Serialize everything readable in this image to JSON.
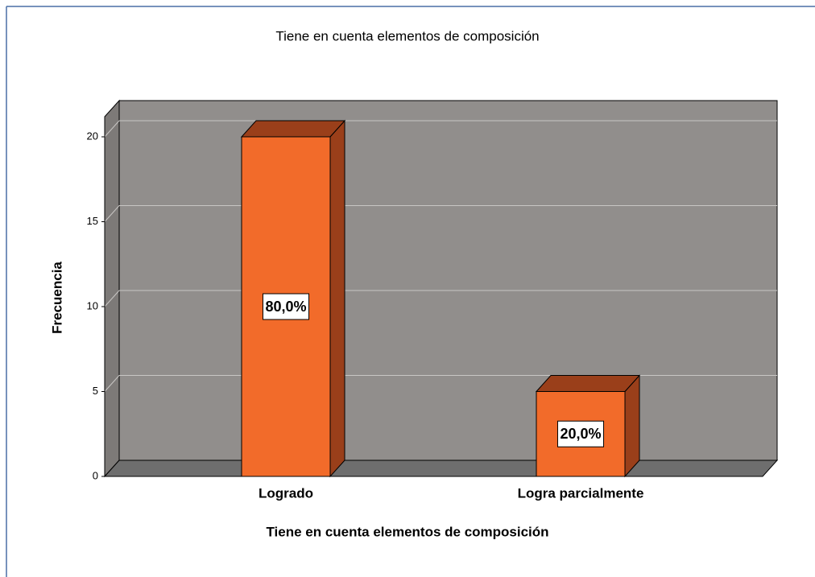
{
  "chart_data": {
    "type": "bar3d",
    "title": "Tiene en cuenta elementos de composición",
    "x_label": "Tiene en cuenta elementos de composición",
    "y_label": "Frecuencia",
    "categories": [
      "Logrado",
      "Logra parcialmente"
    ],
    "values": [
      20,
      5
    ],
    "percent": {
      "values": [
        80,
        20
      ],
      "value_labels": [
        "80,0%",
        "20,0%"
      ]
    },
    "color": "#f26b2a",
    "ylim": [
      0,
      20
    ],
    "yticks": [
      0,
      5,
      10,
      15,
      20
    ],
    "grid": true
  }
}
